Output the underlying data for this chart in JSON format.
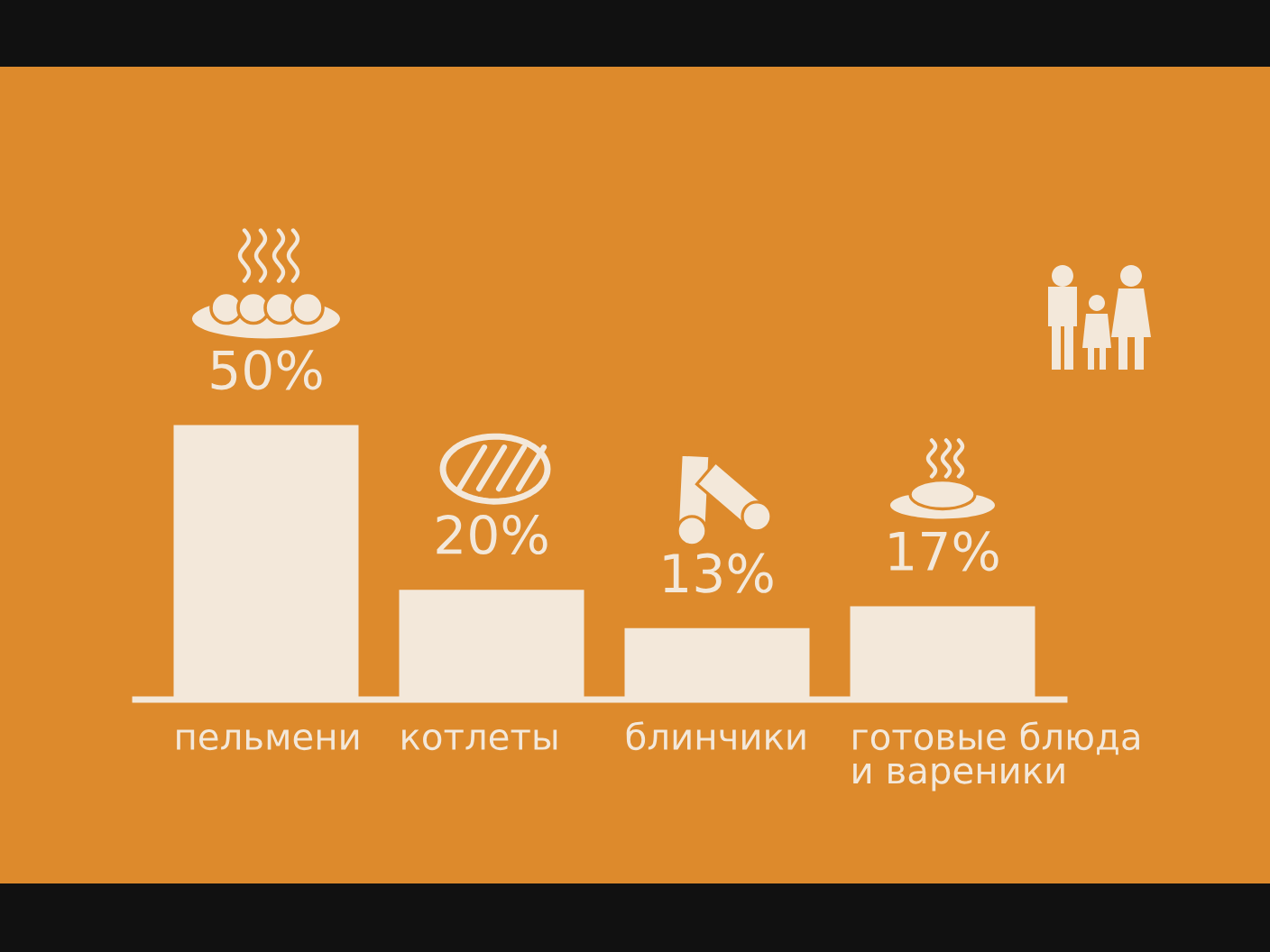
{
  "chart_data": {
    "type": "bar",
    "categories": [
      "пельмени",
      "котлеты",
      "блинчики",
      "готовые блюда\nи вареники"
    ],
    "values": [
      50,
      20,
      13,
      17
    ],
    "value_labels": [
      "50%",
      "20%",
      "13%",
      "17%"
    ],
    "color": "#f3e8da",
    "tick_labels": "x"
  }
}
